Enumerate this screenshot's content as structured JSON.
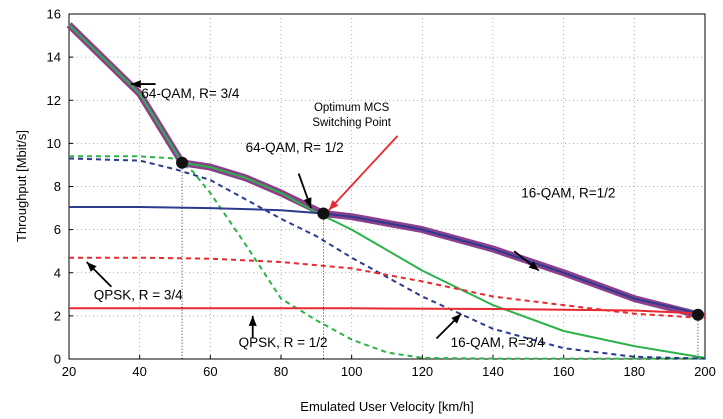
{
  "chart_data": {
    "type": "line",
    "xlabel": "Emulated User Velocity [km/h]",
    "ylabel": "Throughput [Mbit/s]",
    "xlim": [
      20,
      200
    ],
    "ylim": [
      0,
      16
    ],
    "xticks": [
      20,
      40,
      60,
      80,
      100,
      120,
      140,
      160,
      180,
      200
    ],
    "yticks": [
      0,
      2,
      4,
      6,
      8,
      10,
      12,
      14,
      16
    ],
    "grid": true,
    "series": [
      {
        "name": "64-QAM, R= 3/4",
        "color": "#2bb34a",
        "style": "solid",
        "x": [
          20,
          40,
          52,
          60,
          70,
          80,
          90,
          100,
          120,
          140,
          160,
          180,
          200
        ],
        "y": [
          15.5,
          12.3,
          9.1,
          8.9,
          8.4,
          7.7,
          6.8,
          6.0,
          4.1,
          2.5,
          1.3,
          0.6,
          0.05
        ]
      },
      {
        "name": "64-QAM, R= 1/2",
        "color": "#2bb34a",
        "style": "dashed",
        "x": [
          20,
          40,
          50,
          55,
          60,
          70,
          80,
          90,
          100,
          110,
          120,
          140,
          160,
          180,
          200
        ],
        "y": [
          9.4,
          9.4,
          9.3,
          8.7,
          7.7,
          5.3,
          2.8,
          1.8,
          0.9,
          0.3,
          0.05,
          0.02,
          0.02,
          0.02,
          0.02
        ]
      },
      {
        "name": "16-QAM, R=3/4",
        "color": "#2b3b8f",
        "style": "dashed",
        "x": [
          20,
          40,
          50,
          60,
          70,
          80,
          90,
          100,
          120,
          140,
          160,
          180,
          200
        ],
        "y": [
          9.3,
          9.2,
          8.8,
          8.3,
          7.4,
          6.5,
          5.7,
          4.7,
          2.9,
          1.4,
          0.5,
          0.1,
          0.02
        ]
      },
      {
        "name": "16-QAM, R=1/2",
        "color": "#2b3b8f",
        "style": "solid",
        "x": [
          20,
          40,
          60,
          80,
          92,
          100,
          120,
          140,
          160,
          180,
          200
        ],
        "y": [
          7.05,
          7.05,
          7.0,
          6.9,
          6.75,
          6.6,
          6.0,
          5.1,
          4.0,
          2.8,
          2.05
        ]
      },
      {
        "name": "QPSK, R = 3/4",
        "color": "#e8292f",
        "style": "dashed",
        "x": [
          20,
          40,
          60,
          80,
          100,
          120,
          140,
          160,
          180,
          200
        ],
        "y": [
          4.7,
          4.7,
          4.65,
          4.5,
          4.2,
          3.6,
          2.9,
          2.5,
          2.1,
          1.9
        ]
      },
      {
        "name": "QPSK, R = 1/2",
        "color": "#e8292f",
        "style": "solid",
        "x": [
          20,
          60,
          100,
          140,
          180,
          200
        ],
        "y": [
          2.35,
          2.35,
          2.35,
          2.32,
          2.25,
          2.1
        ]
      }
    ],
    "envelope": {
      "name": "Optimum MCS",
      "x": [
        20,
        40,
        52,
        60,
        70,
        80,
        92,
        100,
        120,
        140,
        160,
        180,
        198
      ],
      "y": [
        15.5,
        12.3,
        9.1,
        8.9,
        8.4,
        7.7,
        6.75,
        6.6,
        6.0,
        5.1,
        4.0,
        2.8,
        2.05
      ]
    },
    "switching_points": [
      {
        "x": 52,
        "y": 9.1
      },
      {
        "x": 92,
        "y": 6.75
      },
      {
        "x": 198,
        "y": 2.05
      }
    ],
    "annotations": [
      {
        "id": "a64q34",
        "text": "64-QAM, R= 3/4",
        "tx": 40.5,
        "ty": 12.1
      },
      {
        "id": "a64q12",
        "text": "64-QAM, R= 1/2",
        "tx": 70,
        "ty": 9.6
      },
      {
        "id": "aopt1",
        "text": "Optimum MCS",
        "tx": 100,
        "ty": 11.5
      },
      {
        "id": "aopt2",
        "text": "Switching Point",
        "tx": 100,
        "ty": 10.8
      },
      {
        "id": "a16q12",
        "text": "16-QAM, R=1/2",
        "tx": 148,
        "ty": 7.5
      },
      {
        "id": "aqpsk34",
        "text": "QPSK, R = 3/4",
        "tx": 27,
        "ty": 2.75
      },
      {
        "id": "aqpsk12",
        "text": "QPSK, R = 1/2",
        "tx": 68,
        "ty": 0.55
      },
      {
        "id": "a16q34",
        "text": "16-QAM, R=3/4",
        "tx": 128,
        "ty": 0.55
      }
    ],
    "arrows": [
      {
        "id": "arr-64q34",
        "color": "#000000",
        "from": [
          44.5,
          12.75
        ],
        "to": [
          37.5,
          12.75
        ]
      },
      {
        "id": "arr-64q12",
        "color": "#000000",
        "from": [
          85,
          8.6
        ],
        "to": [
          88.5,
          7.0
        ]
      },
      {
        "id": "arr-opt",
        "color": "#e8292f",
        "from": [
          113,
          10.35
        ],
        "to": [
          93.5,
          6.9
        ]
      },
      {
        "id": "arr-16q12",
        "color": "#000000",
        "from": [
          146,
          5.0
        ],
        "to": [
          153,
          4.1
        ]
      },
      {
        "id": "arr-qpsk34",
        "color": "#000000",
        "from": [
          32,
          3.35
        ],
        "to": [
          25,
          4.5
        ]
      },
      {
        "id": "arr-qpsk12",
        "color": "#000000",
        "from": [
          72,
          1.0
        ],
        "to": [
          72,
          2.0
        ]
      },
      {
        "id": "arr-16q34",
        "color": "#000000",
        "from": [
          124,
          0.95
        ],
        "to": [
          131,
          2.1
        ]
      }
    ]
  }
}
